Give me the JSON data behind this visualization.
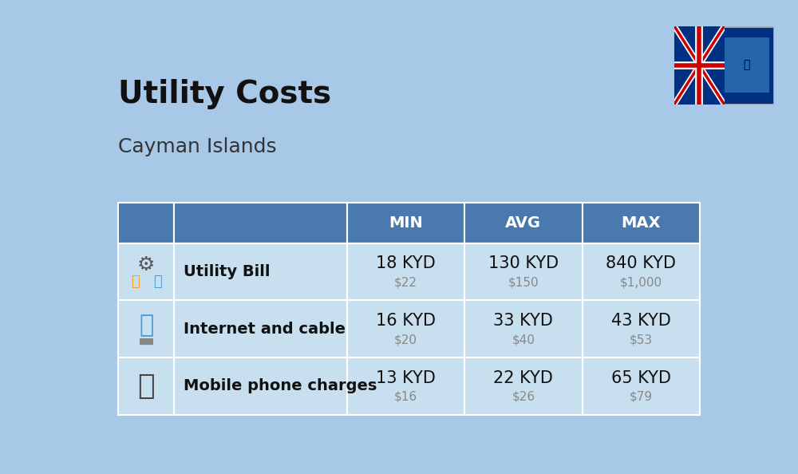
{
  "title": "Utility Costs",
  "subtitle": "Cayman Islands",
  "bg_color": "#a8c8e8",
  "header_bg": "#4a7aad",
  "header_text_color": "#ffffff",
  "row_bg_light": "#c8dff0",
  "cell_border_color": "white",
  "header_labels": [
    "MIN",
    "AVG",
    "MAX"
  ],
  "rows": [
    {
      "label": "Utility Bill",
      "icon": "utility",
      "min_kyd": "18 KYD",
      "min_usd": "$22",
      "avg_kyd": "130 KYD",
      "avg_usd": "$150",
      "max_kyd": "840 KYD",
      "max_usd": "$1,000"
    },
    {
      "label": "Internet and cable",
      "icon": "internet",
      "min_kyd": "16 KYD",
      "min_usd": "$20",
      "avg_kyd": "33 KYD",
      "avg_usd": "$40",
      "max_kyd": "43 KYD",
      "max_usd": "$53"
    },
    {
      "label": "Mobile phone charges",
      "icon": "mobile",
      "min_kyd": "13 KYD",
      "min_usd": "$16",
      "avg_kyd": "22 KYD",
      "avg_usd": "$26",
      "max_kyd": "65 KYD",
      "max_usd": "$79"
    }
  ],
  "kyd_fontsize": 15,
  "usd_fontsize": 11,
  "usd_color": "#888888",
  "label_fontsize": 14,
  "header_fontsize": 14
}
